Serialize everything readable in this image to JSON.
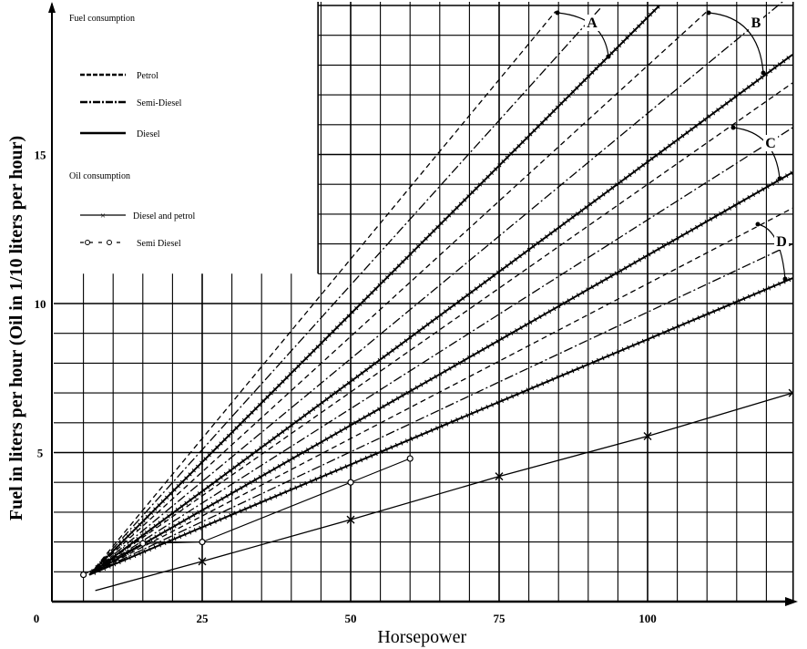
{
  "chart_data": {
    "type": "line",
    "xlabel": "Horsepower",
    "ylabel": "Fuel in liters per hour (Oil in 1/10 liters per hour)",
    "xlim": [
      0,
      124.5
    ],
    "ylim": [
      0,
      20
    ],
    "x_ticks": [
      0,
      25,
      50,
      75,
      100
    ],
    "y_ticks": [
      5,
      10,
      15
    ],
    "grid": true,
    "grid_step": {
      "x": 5,
      "y": 1
    },
    "legend": {
      "placement": "top-left",
      "fuel_heading": "Fuel consumption",
      "oil_heading": "Oil consumption",
      "entries": [
        {
          "label": "Petrol",
          "style": "dashed"
        },
        {
          "label": "Semi-Diesel",
          "style": "dashdot"
        },
        {
          "label": "Diesel",
          "style": "ticked"
        },
        {
          "label": "Diesel and petrol",
          "style": "cross"
        },
        {
          "label": "Semi Diesel",
          "style": "circle"
        }
      ]
    },
    "annotations": [
      "A",
      "B",
      "C",
      "D"
    ],
    "series": [
      {
        "name": "Petrol A",
        "group": "A",
        "kind": "fuel",
        "style": "dashed",
        "x": [
          6,
          84.5
        ],
        "y": [
          0.9,
          19.8
        ]
      },
      {
        "name": "Semi-Diesel A",
        "group": "A",
        "kind": "fuel",
        "style": "dashdot",
        "x": [
          6,
          92
        ],
        "y": [
          0.9,
          19.9
        ]
      },
      {
        "name": "Diesel A",
        "group": "A",
        "kind": "fuel",
        "style": "ticked",
        "x": [
          6,
          102
        ],
        "y": [
          0.9,
          20.0
        ]
      },
      {
        "name": "Petrol B",
        "group": "B",
        "kind": "fuel",
        "style": "dashed",
        "x": [
          6,
          110
        ],
        "y": [
          0.9,
          19.8
        ]
      },
      {
        "name": "Semi-Diesel B",
        "group": "B",
        "kind": "fuel",
        "style": "dashdot",
        "x": [
          6,
          124.4
        ],
        "y": [
          0.9,
          20.4
        ]
      },
      {
        "name": "Diesel B",
        "group": "B",
        "kind": "fuel",
        "style": "ticked",
        "x": [
          6,
          124.4
        ],
        "y": [
          0.9,
          18.35
        ]
      },
      {
        "name": "Petrol C",
        "group": "C",
        "kind": "fuel",
        "style": "dashed",
        "x": [
          6,
          124.4
        ],
        "y": [
          0.9,
          17.4
        ]
      },
      {
        "name": "Semi-Diesel C",
        "group": "C",
        "kind": "fuel",
        "style": "dashdot",
        "x": [
          6,
          124.4
        ],
        "y": [
          0.9,
          15.9
        ]
      },
      {
        "name": "Diesel C",
        "group": "C",
        "kind": "fuel",
        "style": "ticked",
        "x": [
          6,
          124.4
        ],
        "y": [
          0.9,
          14.4
        ]
      },
      {
        "name": "Petrol D",
        "group": "D",
        "kind": "fuel",
        "style": "dashed",
        "x": [
          6,
          124.4
        ],
        "y": [
          0.9,
          13.2
        ]
      },
      {
        "name": "Semi-Diesel D",
        "group": "D",
        "kind": "fuel",
        "style": "dashdot",
        "x": [
          6,
          124.4
        ],
        "y": [
          0.9,
          12.0
        ]
      },
      {
        "name": "Diesel D",
        "group": "D",
        "kind": "fuel",
        "style": "ticked",
        "x": [
          6,
          124.4
        ],
        "y": [
          0.9,
          10.85
        ]
      },
      {
        "name": "Oil Diesel and petrol",
        "kind": "oil",
        "style": "cross",
        "x": [
          7,
          25,
          50,
          75,
          100,
          124.4
        ],
        "y": [
          0.37,
          1.35,
          2.75,
          4.2,
          5.55,
          7.0
        ]
      },
      {
        "name": "Oil Semi Diesel",
        "kind": "oil",
        "style": "circle",
        "x": [
          5,
          15,
          25,
          50,
          60
        ],
        "y": [
          0.9,
          1.95,
          2.0,
          4.0,
          4.8
        ]
      }
    ],
    "annotation_arcs": [
      {
        "label": "A",
        "from": "Petrol A",
        "to": "Diesel A"
      },
      {
        "label": "B",
        "from": "Petrol B",
        "to": "Diesel B"
      },
      {
        "label": "C",
        "from": "Petrol C",
        "to": "Diesel C"
      },
      {
        "label": "D",
        "from": "Petrol D",
        "to": "Diesel D"
      }
    ]
  }
}
